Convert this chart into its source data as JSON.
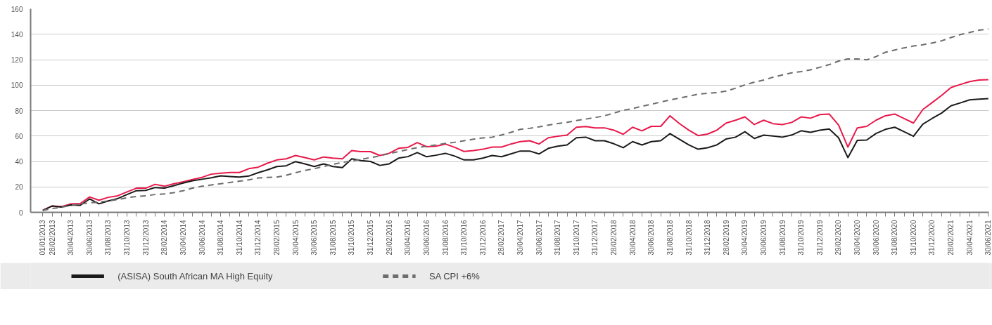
{
  "chart_data": {
    "type": "line",
    "categories": [
      "01/01/2013",
      "28/02/2013",
      null,
      "30/04/2013",
      null,
      "30/06/2013",
      null,
      "31/08/2013",
      null,
      "31/10/2013",
      null,
      "31/12/2013",
      null,
      "28/02/2014",
      null,
      "30/04/2014",
      null,
      "30/06/2014",
      null,
      "31/08/2014",
      null,
      "31/10/2014",
      null,
      "31/12/2014",
      null,
      "28/02/2015",
      null,
      "30/04/2015",
      null,
      "30/06/2015",
      null,
      "31/08/2015",
      null,
      "31/10/2015",
      null,
      "31/12/2015",
      null,
      "29/02/2016",
      null,
      "30/04/2016",
      null,
      "30/06/2016",
      null,
      "31/08/2016",
      null,
      "31/10/2016",
      null,
      "31/12/2016",
      null,
      "28/02/2017",
      null,
      "30/04/2017",
      null,
      "30/06/2017",
      null,
      "31/08/2017",
      null,
      "31/10/2017",
      null,
      "31/12/2017",
      null,
      "28/02/2018",
      null,
      "30/04/2018",
      null,
      "30/06/2018",
      null,
      "31/08/2018",
      null,
      "31/10/2018",
      null,
      "31/12/2018",
      null,
      "28/02/2019",
      null,
      "30/04/2019",
      null,
      "30/06/2019",
      null,
      "31/08/2019",
      null,
      "31/10/2019",
      null,
      "31/12/2019",
      null,
      "29/02/2020",
      null,
      "30/04/2020",
      null,
      "30/06/2020",
      null,
      "31/08/2020",
      null,
      "31/10/2020",
      null,
      "31/12/2020",
      null,
      "28/02/2021",
      null,
      "30/04/2021",
      null,
      "30/06/2021"
    ],
    "ylim": [
      0,
      160
    ],
    "yticks": [
      0,
      20,
      40,
      60,
      80,
      100,
      120,
      140,
      160
    ],
    "grid": "y",
    "legend": "bottom",
    "series": [
      {
        "color": "#e8194a",
        "line_style": "solid",
        "values": [
          1.7,
          4.9,
          4.5,
          6.6,
          6.9,
          12.1,
          9.5,
          11.8,
          13,
          16.1,
          19,
          19,
          22,
          20.5,
          22.5,
          24,
          25.8,
          27.5,
          30,
          30.8,
          31.3,
          31.3,
          34.3,
          35.5,
          38.6,
          41.2,
          42.1,
          44.7,
          43,
          41.2,
          43.5,
          42.6,
          42.1,
          48.5,
          47.7,
          47.7,
          44.7,
          46.4,
          50.3,
          51.1,
          54.8,
          51.6,
          52,
          53.7,
          51.1,
          47.8,
          48.5,
          49.6,
          51.3,
          51.3,
          53.7,
          55.6,
          56.3,
          53.7,
          58.6,
          59.8,
          60.7,
          66.9,
          67.4,
          66.4,
          66.4,
          64.6,
          61.4,
          66.9,
          64.1,
          67.6,
          67.6,
          75.9,
          69.8,
          64.6,
          60.3,
          61.5,
          64.6,
          70.2,
          72.4,
          75,
          69,
          72.4,
          69.7,
          69,
          70.7,
          75,
          74,
          76.8,
          77.3,
          68.6,
          51.3,
          66.4,
          67.6,
          72.4,
          75.9,
          77.3,
          73.7,
          70.2,
          80.8,
          86.3,
          91.9,
          98.1,
          100.5,
          102.8,
          104,
          104.3
        ]
      },
      {
        "name": "(ASISA) South African MA High Equity",
        "color": "#1a1a1a",
        "line_style": "solid",
        "values": [
          1.5,
          5,
          4.2,
          5.8,
          5.5,
          10.5,
          6.7,
          9,
          10.8,
          14,
          17,
          17.2,
          19.5,
          19,
          21,
          23,
          24.8,
          26,
          27.2,
          28.7,
          28.2,
          27.7,
          28.5,
          31.2,
          33.4,
          36,
          36.6,
          39.9,
          38.1,
          36,
          38.1,
          36,
          35.2,
          42.1,
          40.7,
          40,
          36.9,
          38.1,
          42.6,
          43.8,
          47,
          43.7,
          44.9,
          46.4,
          44.2,
          41.2,
          41.2,
          42.6,
          44.7,
          43.7,
          45.9,
          48.2,
          48.2,
          45.9,
          50.3,
          52,
          53,
          58.6,
          59.1,
          56.3,
          56.3,
          53.9,
          50.8,
          55.6,
          53,
          55.6,
          56.3,
          61.9,
          57.4,
          53,
          49.6,
          50.8,
          53,
          57.7,
          59.1,
          63.4,
          58.1,
          60.7,
          60,
          59.1,
          60.8,
          64.1,
          62.9,
          64.6,
          65.5,
          58.6,
          43,
          56.5,
          56.8,
          62,
          65.2,
          66.9,
          63.4,
          59.8,
          69.3,
          73.8,
          78,
          83.7,
          86,
          88.4,
          88.9,
          89.4
        ]
      },
      {
        "name": "SA CPI +6%",
        "color": "#6d6d6e",
        "line_style": "dashed",
        "values": [
          1.5,
          3,
          4,
          5.5,
          6.5,
          7.5,
          8,
          9,
          10,
          11.5,
          12.5,
          13,
          14,
          14.5,
          15.5,
          17,
          19,
          20.5,
          21.5,
          22.5,
          23.5,
          24.5,
          25.5,
          27,
          27.5,
          27.7,
          29.1,
          31.2,
          32.9,
          34.3,
          36,
          37.8,
          39.2,
          40.4,
          41.6,
          43,
          44.4,
          46.1,
          47.7,
          49.4,
          50.8,
          52,
          53,
          54.2,
          55.1,
          56.3,
          57.5,
          58.5,
          59.1,
          60.8,
          62.9,
          65.2,
          66,
          67.2,
          68.6,
          69.8,
          70.7,
          72.1,
          73.3,
          74.5,
          75.9,
          78,
          80.2,
          81.6,
          83.4,
          84.9,
          86.7,
          88.4,
          89.8,
          91.2,
          92.9,
          93.6,
          94.1,
          95.3,
          97.6,
          100.2,
          102.3,
          104,
          106.2,
          108,
          109.7,
          110.6,
          112,
          114,
          116.1,
          118.9,
          120.6,
          120.6,
          119.9,
          122.4,
          125.8,
          127.6,
          129.3,
          130.7,
          131.7,
          133.1,
          134.8,
          137.4,
          139.7,
          141.4,
          143.2,
          144
        ]
      }
    ]
  }
}
